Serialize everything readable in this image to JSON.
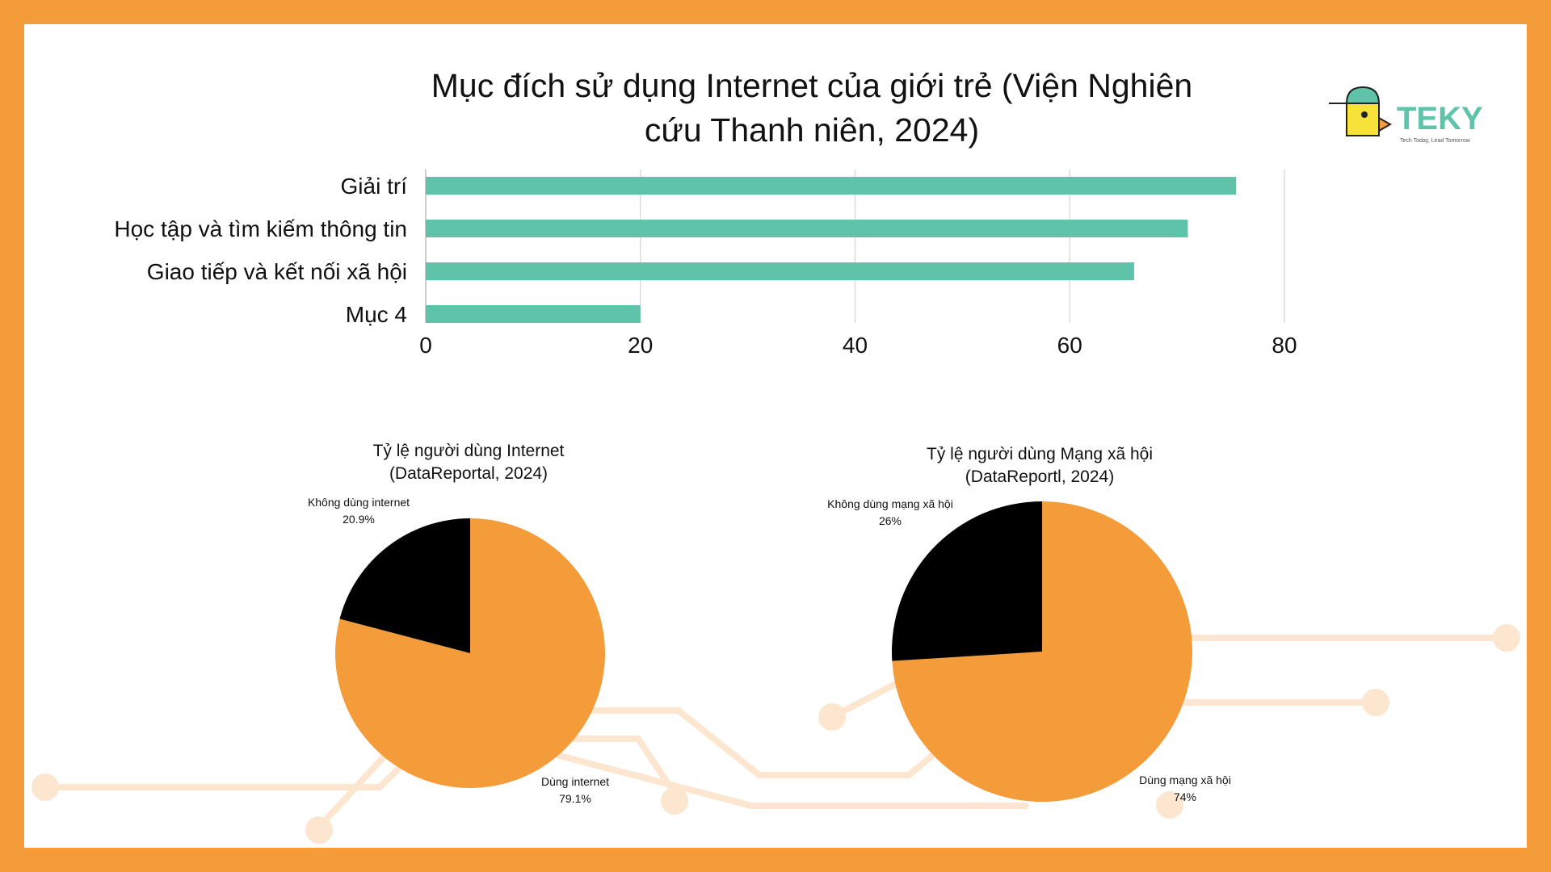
{
  "logo": {
    "brand": "TEKY",
    "tagline": "Tech Today, Lead Tomorrow",
    "color": "#5ec3a9"
  },
  "colors": {
    "frame": "#f49c3a",
    "bar": "#5ec3a9",
    "pie_main": "#f49c3a",
    "pie_other": "#000000",
    "decor": "#fde6d0"
  },
  "chart_data": [
    {
      "type": "bar",
      "orientation": "horizontal",
      "title": "Mục đích sử dụng Internet của giới trẻ (Viện Nghiên cứu Thanh niên, 2024)",
      "title_lines": [
        "Mục đích sử dụng Internet của giới trẻ (Viện Nghiên",
        "cứu Thanh niên, 2024)"
      ],
      "categories": [
        "Giải trí",
        "Học tập và tìm kiếm thông tin",
        "Giao tiếp và kết nối xã hội",
        "Mục 4"
      ],
      "values": [
        75.5,
        71,
        66,
        20
      ],
      "xlim": [
        0,
        80
      ],
      "ticks": [
        "0",
        "20",
        "40",
        "60",
        "80"
      ],
      "grid": true,
      "legend": "none"
    },
    {
      "type": "pie",
      "title": "Tỷ lệ người dùng Internet (DataReportal, 2024)",
      "title_lines": [
        "Tỷ lệ người dùng Internet",
        "(DataReportal, 2024)"
      ],
      "slices": [
        {
          "label": "Dùng internet",
          "value": 79.1,
          "display": "79.1%",
          "color": "#f49c3a"
        },
        {
          "label": "Không dùng internet",
          "value": 20.9,
          "display": "20.9%",
          "color": "#000000"
        }
      ]
    },
    {
      "type": "pie",
      "title": "Tỷ lệ người dùng Mạng xã hội (DataReportl, 2024)",
      "title_lines": [
        "Tỷ lệ người dùng Mạng xã hội",
        "(DataReportl, 2024)"
      ],
      "slices": [
        {
          "label": "Dùng mạng xã hội",
          "value": 74,
          "display": "74%",
          "color": "#f49c3a"
        },
        {
          "label": "Không dùng mạng xã hội",
          "value": 26,
          "display": "26%",
          "color": "#000000"
        }
      ]
    }
  ]
}
